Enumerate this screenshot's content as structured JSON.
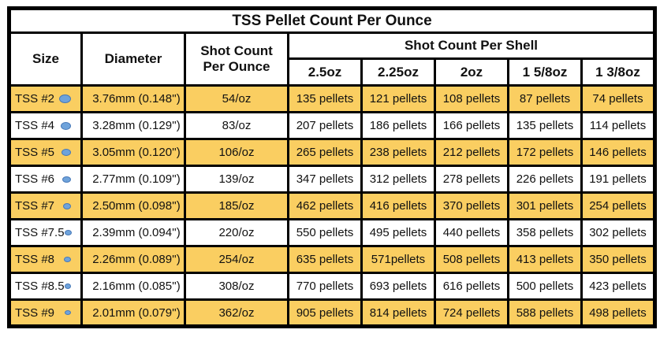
{
  "title": "TSS Pellet Count Per Ounce",
  "colors": {
    "highlight_gold": "#FACE61",
    "pellet_fill": "#6FA3DB",
    "pellet_border": "#4678B8",
    "grid_black": "#000000"
  },
  "table": {
    "columns": {
      "size": "Size",
      "diameter": "Diameter",
      "per_ounce_line1": "Shot Count",
      "per_ounce_line2": "Per Ounce",
      "per_shell_group": "Shot Count Per Shell",
      "shell_sizes": [
        "2.5oz",
        "2.25oz",
        "2oz",
        "1 5/8oz",
        "1 3/8oz"
      ]
    },
    "rows": [
      {
        "size": "TSS #2",
        "pellet_mm": 3.76,
        "diameter": "3.76mm (0.148'')",
        "per_ounce": "54/oz",
        "highlighted": true,
        "shells": [
          "135 pellets",
          "121 pellets",
          "108 pellets",
          "87 pellets",
          "74 pellets"
        ]
      },
      {
        "size": "TSS #4",
        "pellet_mm": 3.28,
        "diameter": "3.28mm (0.129'')",
        "per_ounce": "83/oz",
        "highlighted": false,
        "shells": [
          "207 pellets",
          "186 pellets",
          "166 pellets",
          "135 pellets",
          "114 pellets"
        ]
      },
      {
        "size": "TSS #5",
        "pellet_mm": 3.05,
        "diameter": "3.05mm (0.120'')",
        "per_ounce": "106/oz",
        "highlighted": true,
        "shells": [
          "265 pellets",
          "238 pellets",
          "212 pellets",
          "172 pellets",
          "146 pellets"
        ]
      },
      {
        "size": "TSS #6",
        "pellet_mm": 2.77,
        "diameter": "2.77mm (0.109'')",
        "per_ounce": "139/oz",
        "highlighted": false,
        "shells": [
          "347 pellets",
          "312 pellets",
          "278 pellets",
          "226 pellets",
          "191 pellets"
        ]
      },
      {
        "size": "TSS #7",
        "pellet_mm": 2.5,
        "diameter": "2.50mm (0.098'')",
        "per_ounce": "185/oz",
        "highlighted": true,
        "shells": [
          "462 pellets",
          "416 pellets",
          "370 pellets",
          "301 pellets",
          "254 pellets"
        ]
      },
      {
        "size": "TSS #7.5",
        "pellet_mm": 2.39,
        "diameter": "2.39mm (0.094'')",
        "per_ounce": "220/oz",
        "highlighted": false,
        "shells": [
          "550 pellets",
          "495 pellets",
          "440 pellets",
          "358 pellets",
          "302 pellets"
        ]
      },
      {
        "size": "TSS #8",
        "pellet_mm": 2.26,
        "diameter": "2.26mm (0.089'')",
        "per_ounce": "254/oz",
        "highlighted": true,
        "shells": [
          "635 pellets",
          "571pellets",
          "508 pellets",
          "413 pellets",
          "350 pellets"
        ]
      },
      {
        "size": "TSS #8.5",
        "pellet_mm": 2.16,
        "diameter": "2.16mm (0.085'')",
        "per_ounce": "308/oz",
        "highlighted": false,
        "shells": [
          "770 pellets",
          "693 pellets",
          "616 pellets",
          "500 pellets",
          "423 pellets"
        ]
      },
      {
        "size": "TSS #9",
        "pellet_mm": 2.01,
        "diameter": "2.01mm (0.079'')",
        "per_ounce": "362/oz",
        "highlighted": true,
        "shells": [
          "905 pellets",
          "814 pellets",
          "724 pellets",
          "588 pellets",
          "498 pellets"
        ]
      }
    ]
  },
  "chart_data": {
    "type": "table",
    "title": "TSS Pellet Count Per Ounce",
    "categories": [
      "TSS #2",
      "TSS #4",
      "TSS #5",
      "TSS #6",
      "TSS #7",
      "TSS #7.5",
      "TSS #8",
      "TSS #8.5",
      "TSS #9"
    ],
    "diameter_mm": [
      3.76,
      3.28,
      3.05,
      2.77,
      2.5,
      2.39,
      2.26,
      2.16,
      2.01
    ],
    "diameter_in": [
      0.148,
      0.129,
      0.12,
      0.109,
      0.098,
      0.094,
      0.089,
      0.085,
      0.079
    ],
    "column_group_label": "Shot Count Per Shell",
    "series": [
      {
        "name": "Shot Count Per Ounce",
        "values": [
          54,
          83,
          106,
          139,
          185,
          220,
          254,
          308,
          362
        ]
      },
      {
        "name": "2.5oz",
        "values": [
          135,
          207,
          265,
          347,
          462,
          550,
          635,
          770,
          905
        ]
      },
      {
        "name": "2.25oz",
        "values": [
          121,
          186,
          238,
          312,
          416,
          495,
          571,
          693,
          814
        ]
      },
      {
        "name": "2oz",
        "values": [
          108,
          166,
          212,
          278,
          370,
          440,
          508,
          616,
          724
        ]
      },
      {
        "name": "1 5/8oz",
        "values": [
          87,
          135,
          172,
          226,
          301,
          358,
          413,
          500,
          588
        ]
      },
      {
        "name": "1 3/8oz",
        "values": [
          74,
          114,
          146,
          191,
          254,
          302,
          350,
          423,
          498
        ]
      }
    ]
  }
}
